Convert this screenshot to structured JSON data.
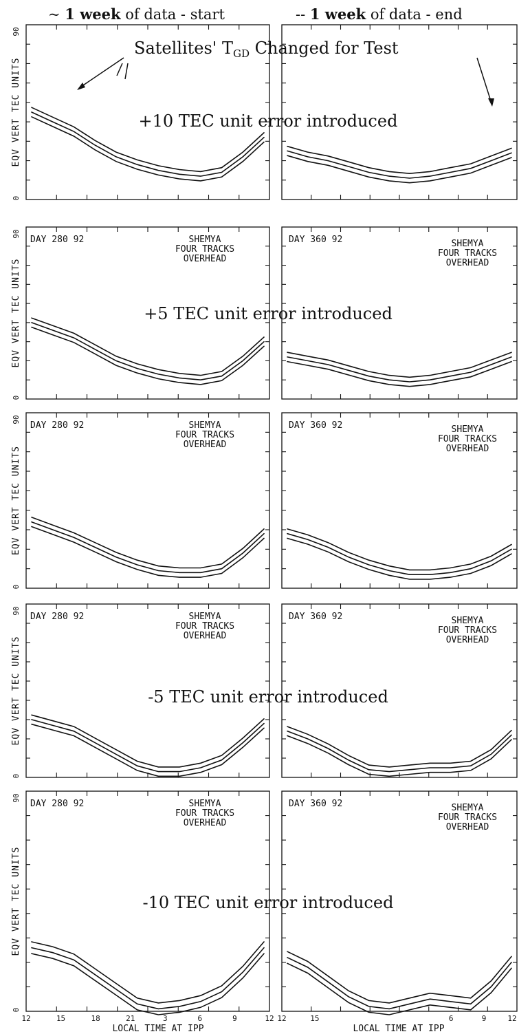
{
  "header": {
    "left_prefix": "~ ",
    "left_bold": "1 week",
    "left_suffix": " of data - start",
    "right_prefix": "-- ",
    "right_bold": "1 week",
    "right_suffix": " of data - end"
  },
  "top_annotation": "Satellites' T",
  "top_annotation_sub": "GD",
  "top_annotation_end": " Changed for Test",
  "y_axis": {
    "label": "EQV VERT TEC UNITS",
    "min_label": "0",
    "max_label": "90"
  },
  "x_axis": {
    "label": "LOCAL TIME AT IPP",
    "left_ticks": [
      "12",
      "15",
      "18",
      "21",
      "3",
      "6",
      "9",
      "12"
    ],
    "right_ticks": [
      "12",
      "15",
      "6",
      "9",
      "12"
    ]
  },
  "panels": [
    {
      "annotation": "+10 TEC unit error introduced",
      "left_day": "",
      "right_day": "",
      "station": "",
      "subtitle_1": "",
      "subtitle_2": ""
    },
    {
      "annotation": "+5 TEC unit error introduced",
      "left_day": "DAY 280 92",
      "right_day": "DAY 360 92",
      "station": "SHEMYA",
      "subtitle_1": "FOUR TRACKS",
      "subtitle_2": "OVERHEAD"
    },
    {
      "annotation": "",
      "left_day": "DAY 280 92",
      "right_day": "DAY 360 92",
      "station": "SHEMYA",
      "subtitle_1": "FOUR TRACKS",
      "subtitle_2": "OVERHEAD"
    },
    {
      "annotation": "-5 TEC unit error introduced",
      "left_day": "DAY 280 92",
      "right_day": "DAY 360 92",
      "station": "SHEMYA",
      "subtitle_1": "FOUR TRACKS",
      "subtitle_2": "OVERHEAD"
    },
    {
      "annotation": "-10 TEC unit error introduced",
      "left_day": "DAY 280 92",
      "right_day": "DAY 360 92",
      "station": "SHEMYA",
      "subtitle_1": "FOUR TRACKS",
      "subtitle_2": "OVERHEAD"
    }
  ],
  "chart_data": {
    "type": "line",
    "ylim": [
      0,
      90
    ],
    "series": [
      {
        "panel": 0,
        "side": "left",
        "y": [
          45,
          40,
          35,
          28,
          22,
          18,
          15,
          13,
          12,
          14,
          22,
          32
        ]
      },
      {
        "panel": 0,
        "side": "right",
        "y": [
          25,
          22,
          20,
          17,
          14,
          12,
          11,
          12,
          14,
          16,
          20,
          24
        ]
      },
      {
        "panel": 1,
        "side": "left",
        "y": [
          40,
          36,
          32,
          26,
          20,
          16,
          13,
          11,
          10,
          12,
          20,
          30
        ]
      },
      {
        "panel": 1,
        "side": "right",
        "y": [
          22,
          20,
          18,
          15,
          12,
          10,
          9,
          10,
          12,
          14,
          18,
          22
        ]
      },
      {
        "panel": 2,
        "side": "left",
        "y": [
          34,
          30,
          26,
          21,
          16,
          12,
          9,
          8,
          8,
          10,
          18,
          28
        ]
      },
      {
        "panel": 2,
        "side": "right",
        "y": [
          28,
          25,
          21,
          16,
          12,
          9,
          7,
          7,
          8,
          10,
          14,
          20
        ]
      },
      {
        "panel": 3,
        "side": "left",
        "y": [
          30,
          27,
          24,
          18,
          12,
          6,
          3,
          3,
          5,
          9,
          18,
          28
        ]
      },
      {
        "panel": 3,
        "side": "right",
        "y": [
          24,
          20,
          15,
          9,
          4,
          3,
          4,
          5,
          5,
          6,
          12,
          22
        ]
      },
      {
        "panel": 4,
        "side": "left",
        "y": [
          26,
          24,
          21,
          15,
          9,
          3,
          1,
          2,
          4,
          8,
          16,
          26
        ]
      },
      {
        "panel": 4,
        "side": "right",
        "y": [
          22,
          18,
          12,
          6,
          2,
          1,
          3,
          5,
          4,
          3,
          10,
          20
        ]
      }
    ]
  }
}
